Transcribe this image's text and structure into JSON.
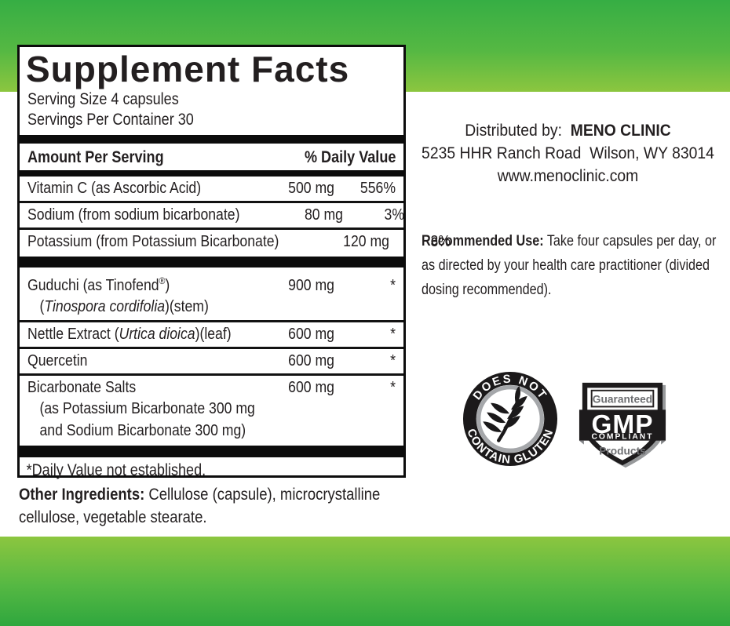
{
  "colors": {
    "green_top": "#36ae44",
    "green_light": "#8cc63f",
    "green_bottom": "#2fa73e",
    "ink": "#231f20",
    "bar_black": "#0c0c0c",
    "badge_gray": "#a5a7aa"
  },
  "panel": {
    "title": "Supplement Facts",
    "serving_size": "Serving Size 4 capsules",
    "servings_per_container": "Servings Per Container 30",
    "amount_header": "Amount Per Serving",
    "dv_header": "% Daily Value",
    "groups": [
      {
        "rows": [
          {
            "name": [
              {
                "t": "Vitamin C (as Ascorbic Acid)"
              }
            ],
            "amount": "500 mg",
            "dv": "556%"
          },
          {
            "name": [
              {
                "t": "Sodium (from sodium bicarbonate)"
              }
            ],
            "amount": "80 mg",
            "dv": "3%"
          },
          {
            "name": [
              {
                "t": "Potassium (from Potassium Bicarbonate)"
              }
            ],
            "amount": "120 mg",
            "dv": "3%",
            "noline": true
          }
        ]
      },
      {
        "rows": [
          {
            "name": [
              {
                "t": "Guduchi (as Tinofend"
              },
              {
                "t": "®",
                "sup": true
              },
              {
                "t": ")"
              }
            ],
            "amount": "900 mg",
            "dv": "*",
            "sub": [
              [
                {
                  "t": "("
                },
                {
                  "t": "Tinospora cordifolia",
                  "i": true
                },
                {
                  "t": ")(stem)"
                }
              ]
            ]
          },
          {
            "name": [
              {
                "t": "Nettle Extract ("
              },
              {
                "t": "Urtica dioica",
                "i": true
              },
              {
                "t": ")(leaf)"
              }
            ],
            "amount": "600 mg",
            "dv": "*"
          },
          {
            "name": [
              {
                "t": "Quercetin"
              }
            ],
            "amount": "600 mg",
            "dv": "*"
          },
          {
            "name": [
              {
                "t": "Bicarbonate Salts"
              }
            ],
            "amount": "600 mg",
            "dv": "*",
            "noline": true,
            "sub": [
              [
                {
                  "t": "(as Potassium Bicarbonate 300 mg"
                }
              ],
              [
                {
                  "t": "and Sodium Bicarbonate 300 mg)"
                }
              ]
            ]
          }
        ]
      }
    ],
    "footnote": "*Daily Value not established."
  },
  "other_ingredients": {
    "label": "Other Ingredients:",
    "line1": "Cellulose (capsule), microcrystalline",
    "line2": "cellulose, vegetable stearate."
  },
  "right": {
    "distributed_prefix": "Distributed by:  ",
    "distributor": "MENO CLINIC",
    "address": "5235 HHR Ranch Road  Wilson, WY 83014",
    "website": "www.menoclinic.com",
    "recommended_label": "Recommended Use:",
    "recommended_lines": [
      "Take four capsules per day, or",
      "as directed by your health care practitioner (divided",
      "dosing recommended)."
    ]
  },
  "badges": {
    "gluten_top": "DOES NOT",
    "gluten_bottom": "CONTAIN GLUTEN",
    "gmp_guaranteed": "Guaranteed",
    "gmp": "GMP",
    "gmp_compliant": "COMPLIANT",
    "gmp_products": "Products"
  }
}
